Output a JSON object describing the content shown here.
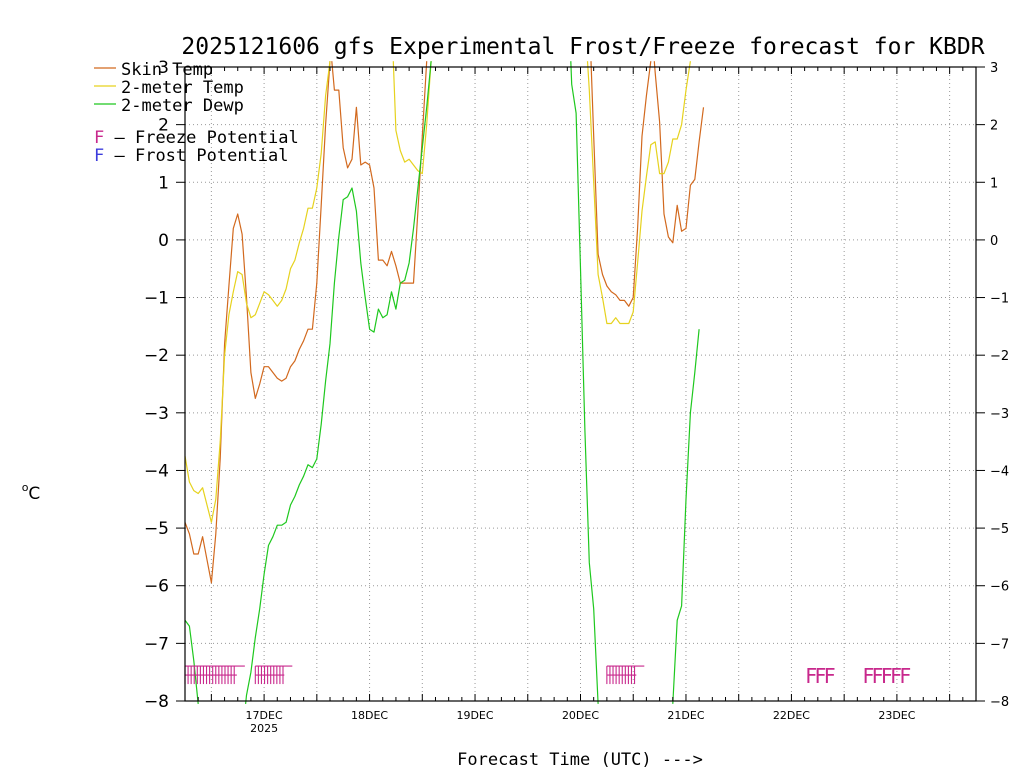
{
  "colors": {
    "skin": "#d2691e",
    "temp2m": "#e6d21e",
    "dewp2m": "#1ec81e",
    "freeze": "#c8288c",
    "frost": "#3c3cdc"
  },
  "chart_data": {
    "type": "line",
    "title": "2025121606 gfs Experimental Frost/Freeze forecast for KBDR",
    "ylabel": "oC",
    "xlabel": "Forecast Time (UTC) --->",
    "ylim": [
      -8,
      3
    ],
    "yticks": [
      -8,
      -7,
      -6,
      -5,
      -4,
      -3,
      -2,
      -1,
      0,
      1,
      2,
      3
    ],
    "ytick_labels": [
      "−8",
      "−7",
      "−6",
      "−5",
      "−4",
      "−3",
      "−2",
      "−1",
      "0",
      "1",
      "2",
      "3"
    ],
    "xlim_hours": [
      6,
      186
    ],
    "xticks": [
      {
        "hour": 24,
        "label": "17DEC",
        "sublabel": "2025"
      },
      {
        "hour": 48,
        "label": "18DEC"
      },
      {
        "hour": 72,
        "label": "19DEC"
      },
      {
        "hour": 96,
        "label": "20DEC"
      },
      {
        "hour": 120,
        "label": "21DEC"
      },
      {
        "hour": 144,
        "label": "22DEC"
      },
      {
        "hour": 168,
        "label": "23DEC"
      }
    ],
    "legend": {
      "series": [
        "Skin Temp",
        "2-meter Temp",
        "2-meter Dewp"
      ],
      "freeze_label": "Freeze Potential",
      "frost_label": "Frost Potential",
      "marker": "F"
    },
    "series": [
      {
        "name": "Skin Temp",
        "segments": [
          [
            [
              6,
              -4.9
            ],
            [
              7,
              -5.1
            ],
            [
              8,
              -5.45
            ],
            [
              9,
              -5.45
            ],
            [
              10,
              -5.15
            ],
            [
              11,
              -5.55
            ],
            [
              12,
              -5.95
            ],
            [
              13,
              -5.1
            ],
            [
              14,
              -3.8
            ],
            [
              15,
              -1.8
            ],
            [
              16,
              -0.8
            ],
            [
              17,
              0.2
            ],
            [
              18,
              0.45
            ],
            [
              19,
              0.1
            ],
            [
              20,
              -1.0
            ],
            [
              21,
              -2.3
            ],
            [
              22,
              -2.75
            ],
            [
              23,
              -2.5
            ],
            [
              24,
              -2.2
            ],
            [
              25,
              -2.2
            ],
            [
              26,
              -2.3
            ],
            [
              27,
              -2.4
            ],
            [
              28,
              -2.45
            ],
            [
              29,
              -2.4
            ],
            [
              30,
              -2.2
            ],
            [
              31,
              -2.1
            ],
            [
              32,
              -1.9
            ],
            [
              33,
              -1.75
            ],
            [
              34,
              -1.55
            ],
            [
              35,
              -1.55
            ],
            [
              36,
              -0.75
            ],
            [
              37,
              0.6
            ],
            [
              38,
              2.0
            ],
            [
              39,
              3.1
            ]
          ],
          [
            [
              39.4,
              3.1
            ],
            [
              40,
              2.6
            ],
            [
              41,
              2.6
            ],
            [
              42,
              1.6
            ],
            [
              43,
              1.25
            ],
            [
              44,
              1.4
            ],
            [
              45,
              2.3
            ],
            [
              46,
              1.3
            ],
            [
              47,
              1.35
            ],
            [
              48,
              1.3
            ],
            [
              49,
              0.9
            ],
            [
              50,
              -0.35
            ],
            [
              51,
              -0.35
            ],
            [
              52,
              -0.45
            ],
            [
              53,
              -0.2
            ],
            [
              54,
              -0.45
            ],
            [
              55,
              -0.75
            ],
            [
              56,
              -0.75
            ],
            [
              57,
              -0.75
            ],
            [
              58,
              -0.75
            ],
            [
              59,
              0.5
            ],
            [
              60,
              1.8
            ],
            [
              61,
              3.1
            ]
          ],
          [
            [
              98.4,
              3.1
            ],
            [
              99,
              1.8
            ],
            [
              100,
              -0.25
            ],
            [
              101,
              -0.6
            ],
            [
              102,
              -0.8
            ],
            [
              103,
              -0.9
            ],
            [
              104,
              -0.95
            ],
            [
              105,
              -1.05
            ],
            [
              106,
              -1.05
            ],
            [
              107,
              -1.15
            ],
            [
              108,
              -1.0
            ],
            [
              109,
              0.2
            ],
            [
              110,
              1.8
            ],
            [
              111,
              2.5
            ],
            [
              112,
              3.1
            ]
          ],
          [
            [
              112.8,
              3.1
            ],
            [
              113,
              2.9
            ],
            [
              114,
              2.05
            ],
            [
              115,
              0.45
            ],
            [
              116,
              0.05
            ],
            [
              117,
              -0.05
            ],
            [
              118,
              0.6
            ],
            [
              119,
              0.15
            ],
            [
              120,
              0.2
            ],
            [
              121,
              0.95
            ],
            [
              122,
              1.05
            ],
            [
              123,
              1.7
            ],
            [
              124,
              2.3
            ]
          ]
        ]
      },
      {
        "name": "2-meter Temp",
        "segments": [
          [
            [
              6,
              -3.75
            ],
            [
              7,
              -4.2
            ],
            [
              8,
              -4.35
            ],
            [
              9,
              -4.4
            ],
            [
              10,
              -4.3
            ],
            [
              11,
              -4.6
            ],
            [
              12,
              -4.9
            ],
            [
              13,
              -4.5
            ],
            [
              14,
              -3.5
            ],
            [
              15,
              -2.0
            ],
            [
              16,
              -1.3
            ],
            [
              17,
              -0.9
            ],
            [
              18,
              -0.55
            ],
            [
              19,
              -0.6
            ],
            [
              20,
              -1.1
            ],
            [
              21,
              -1.35
            ],
            [
              22,
              -1.3
            ],
            [
              23,
              -1.1
            ],
            [
              24,
              -0.9
            ],
            [
              25,
              -0.95
            ],
            [
              26,
              -1.05
            ],
            [
              27,
              -1.15
            ],
            [
              28,
              -1.05
            ],
            [
              29,
              -0.85
            ],
            [
              30,
              -0.5
            ],
            [
              31,
              -0.35
            ],
            [
              32,
              -0.05
            ],
            [
              33,
              0.2
            ],
            [
              34,
              0.55
            ],
            [
              35,
              0.55
            ],
            [
              36,
              0.9
            ],
            [
              37,
              1.5
            ],
            [
              38,
              2.5
            ],
            [
              39,
              3.1
            ]
          ],
          [
            [
              53.4,
              3.1
            ],
            [
              54,
              1.9
            ],
            [
              55,
              1.55
            ],
            [
              56,
              1.35
            ],
            [
              57,
              1.4
            ],
            [
              58,
              1.3
            ],
            [
              59,
              1.2
            ],
            [
              60,
              1.15
            ],
            [
              61,
              2.0
            ],
            [
              62,
              3.1
            ]
          ],
          [
            [
              97.6,
              3.1
            ],
            [
              98,
              2.6
            ],
            [
              99,
              1.0
            ],
            [
              100,
              -0.6
            ],
            [
              101,
              -1.0
            ],
            [
              102,
              -1.45
            ],
            [
              103,
              -1.45
            ],
            [
              104,
              -1.35
            ],
            [
              105,
              -1.45
            ],
            [
              106,
              -1.45
            ],
            [
              107,
              -1.45
            ],
            [
              108,
              -1.25
            ],
            [
              109,
              -0.4
            ],
            [
              110,
              0.5
            ],
            [
              111,
              1.1
            ],
            [
              112,
              1.65
            ],
            [
              113,
              1.7
            ],
            [
              114,
              1.15
            ],
            [
              115,
              1.15
            ],
            [
              116,
              1.35
            ],
            [
              117,
              1.75
            ],
            [
              118,
              1.75
            ],
            [
              119,
              2.0
            ],
            [
              120,
              2.6
            ],
            [
              121,
              3.1
            ]
          ]
        ]
      },
      {
        "name": "2-meter Dewp",
        "segments": [
          [
            [
              6,
              -6.6
            ],
            [
              7,
              -6.7
            ],
            [
              8,
              -7.3
            ],
            [
              9,
              -8.05
            ]
          ],
          [
            [
              19.8,
              -8.05
            ],
            [
              20,
              -7.9
            ],
            [
              21,
              -7.5
            ],
            [
              22,
              -6.9
            ],
            [
              23,
              -6.4
            ],
            [
              24,
              -5.8
            ],
            [
              25,
              -5.3
            ],
            [
              26,
              -5.15
            ],
            [
              27,
              -4.95
            ],
            [
              28,
              -4.95
            ],
            [
              29,
              -4.9
            ],
            [
              30,
              -4.6
            ],
            [
              31,
              -4.45
            ],
            [
              32,
              -4.25
            ],
            [
              33,
              -4.1
            ],
            [
              34,
              -3.9
            ],
            [
              35,
              -3.95
            ],
            [
              36,
              -3.8
            ],
            [
              37,
              -3.2
            ],
            [
              38,
              -2.45
            ],
            [
              39,
              -1.8
            ],
            [
              40,
              -0.75
            ],
            [
              41,
              0.05
            ],
            [
              42,
              0.7
            ],
            [
              43,
              0.75
            ],
            [
              44,
              0.9
            ],
            [
              45,
              0.5
            ],
            [
              46,
              -0.4
            ],
            [
              47,
              -1.0
            ],
            [
              48,
              -1.55
            ],
            [
              49,
              -1.6
            ],
            [
              50,
              -1.2
            ],
            [
              51,
              -1.35
            ],
            [
              52,
              -1.3
            ],
            [
              53,
              -0.9
            ],
            [
              54,
              -1.2
            ],
            [
              55,
              -0.75
            ],
            [
              56,
              -0.7
            ],
            [
              57,
              -0.4
            ],
            [
              58,
              0.2
            ],
            [
              59,
              0.9
            ],
            [
              60,
              1.6
            ],
            [
              61,
              2.3
            ],
            [
              62,
              3.1
            ]
          ],
          [
            [
              93.8,
              3.1
            ],
            [
              94,
              2.7
            ],
            [
              95,
              2.2
            ],
            [
              96,
              -0.5
            ],
            [
              97,
              -3.3
            ],
            [
              98,
              -5.6
            ],
            [
              99,
              -6.4
            ],
            [
              100,
              -8.05
            ]
          ],
          [
            [
              117,
              -8.05
            ],
            [
              118,
              -6.6
            ],
            [
              119,
              -6.35
            ],
            [
              120,
              -4.5
            ],
            [
              121,
              -3.0
            ],
            [
              122,
              -2.3
            ],
            [
              123,
              -1.55
            ]
          ]
        ]
      }
    ]
  }
}
